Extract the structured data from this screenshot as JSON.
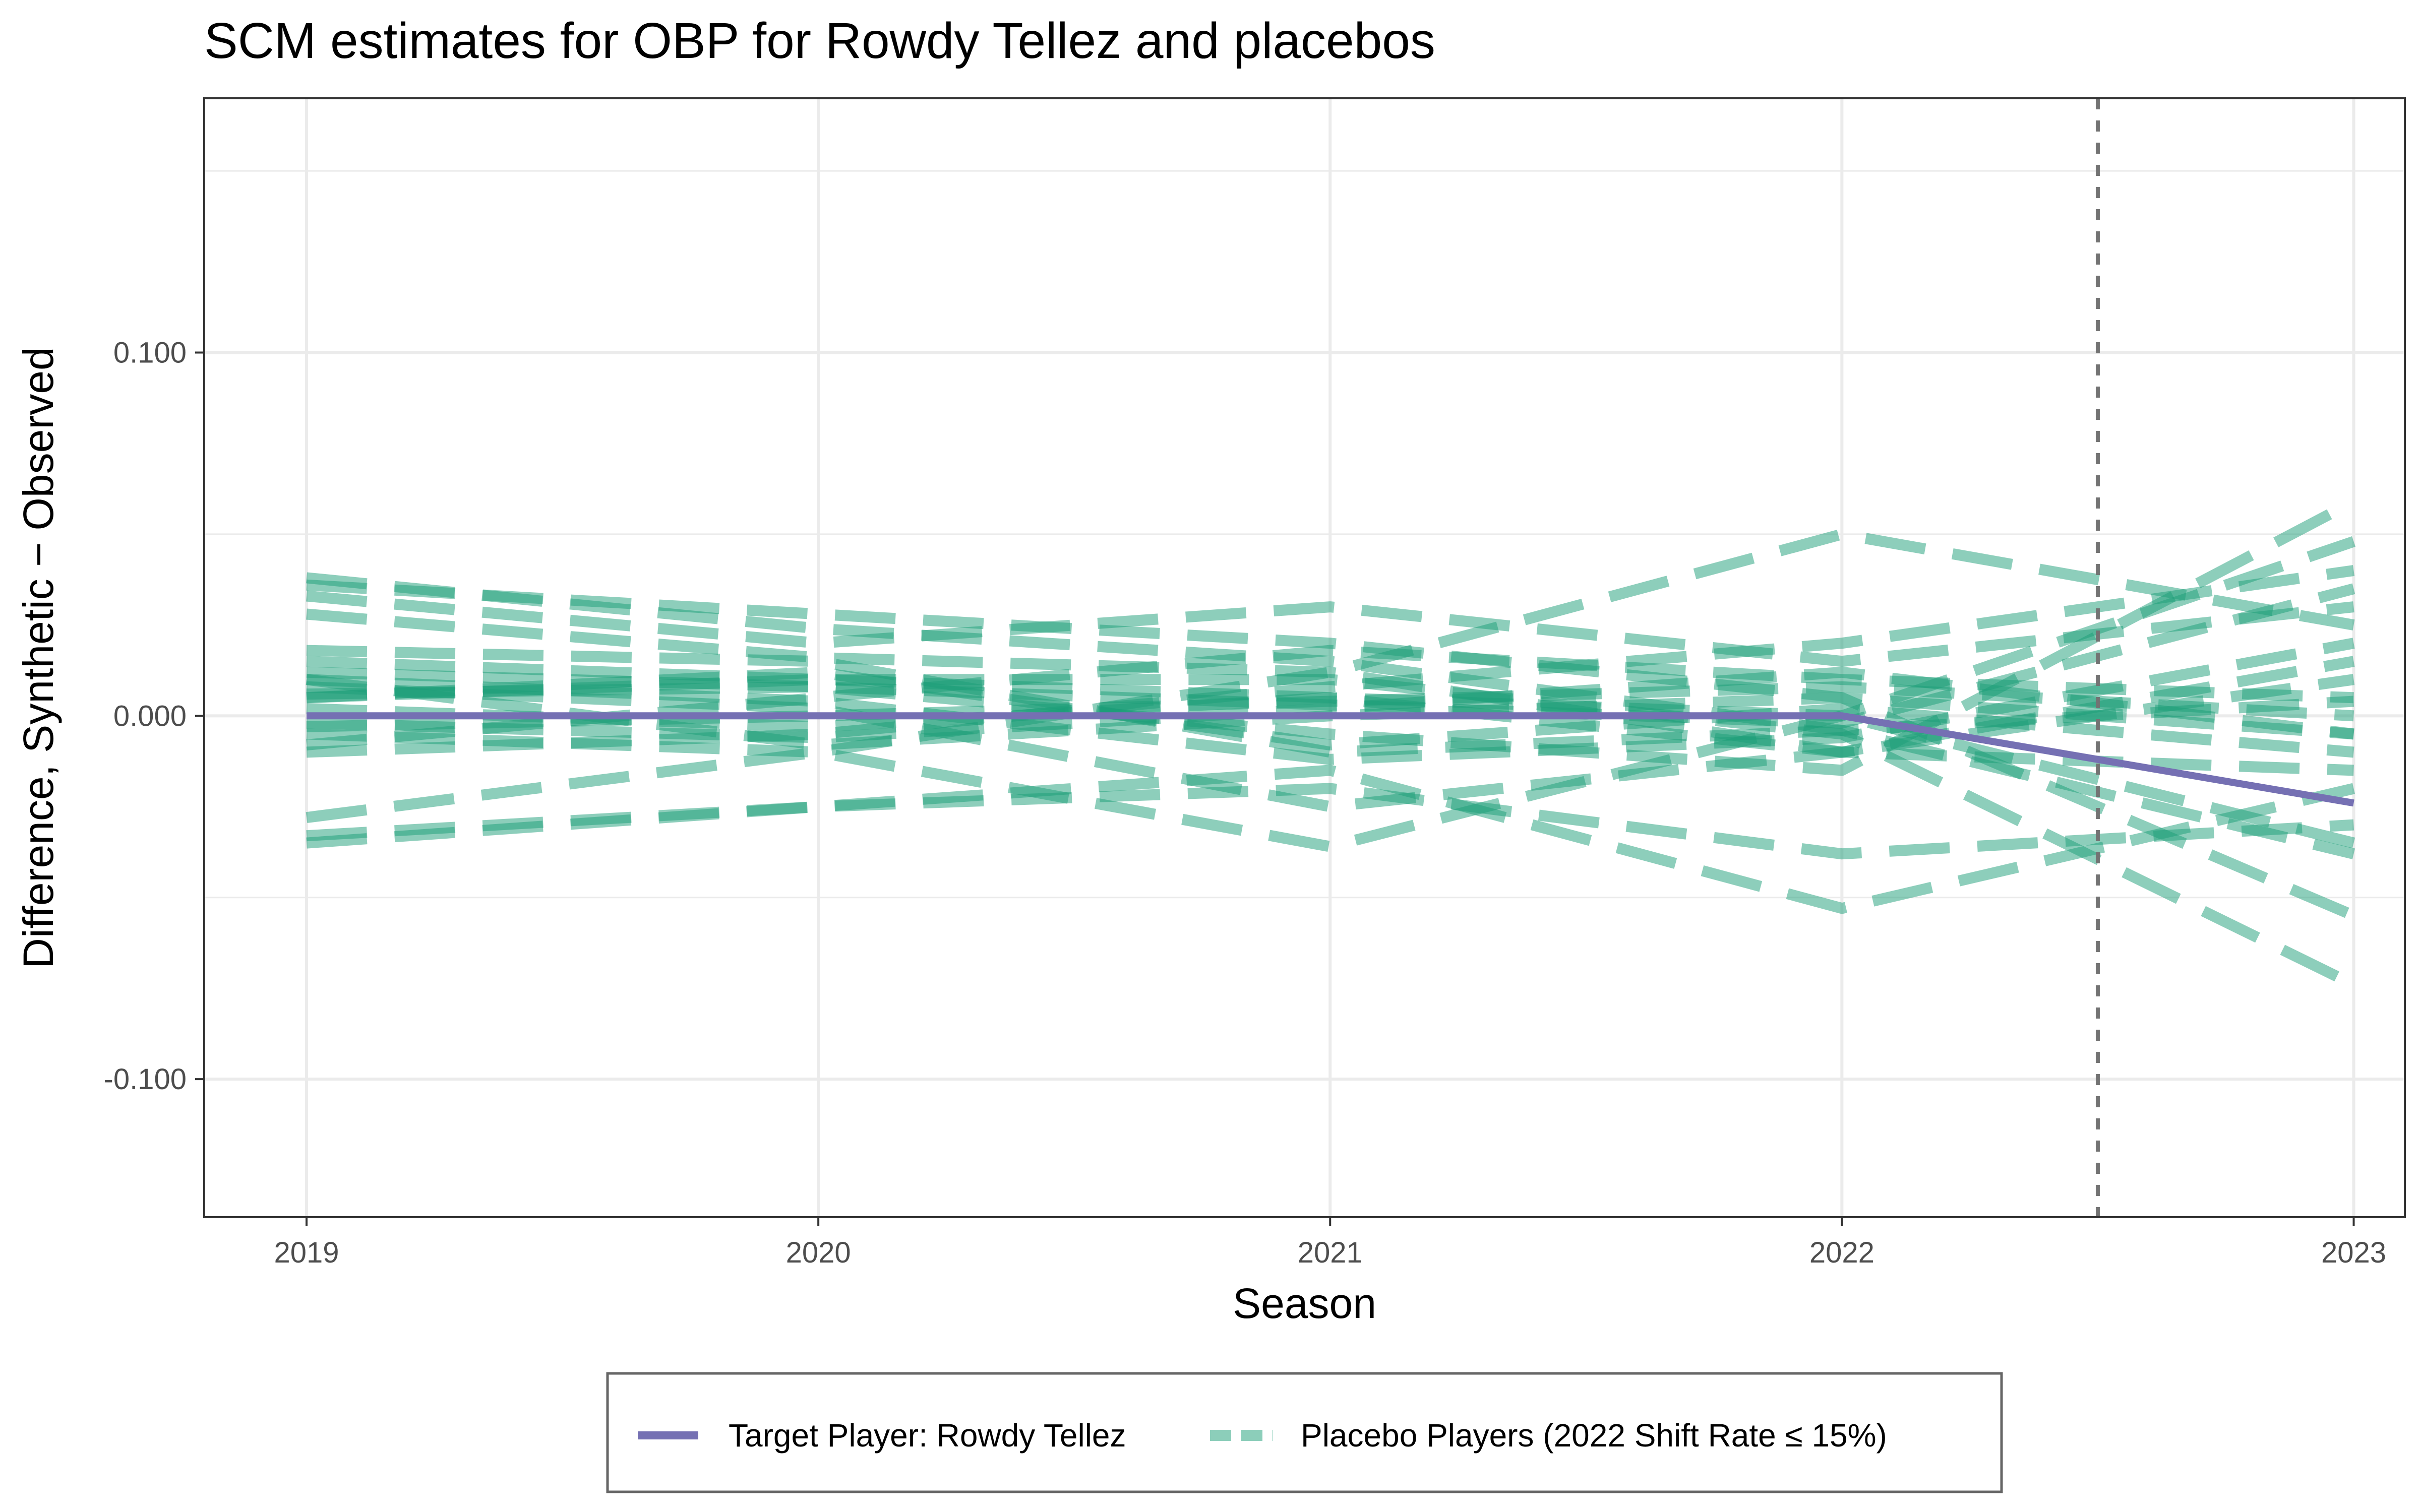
{
  "chart_data": {
    "type": "line",
    "title": "SCM estimates for OBP for Rowdy Tellez and placebos",
    "xlabel": "Season",
    "ylabel": "Difference, Synthetic − Observed",
    "xlim": [
      2018.8,
      2023.1
    ],
    "ylim": [
      -0.138,
      0.17
    ],
    "x_ticks": [
      {
        "value": 2019,
        "label": "2019"
      },
      {
        "value": 2020,
        "label": "2020"
      },
      {
        "value": 2021,
        "label": "2021"
      },
      {
        "value": 2022,
        "label": "2022"
      },
      {
        "value": 2023,
        "label": "2023"
      }
    ],
    "y_ticks": [
      {
        "value": -0.1,
        "label": "-0.100"
      },
      {
        "value": 0.0,
        "label": "0.000"
      },
      {
        "value": 0.1,
        "label": "0.100"
      }
    ],
    "y_minor_gridlines": [
      -0.05,
      0.05,
      0.15
    ],
    "treatment_line_x": 2022.5,
    "grid": true,
    "legend_position": "bottom",
    "target": {
      "name": "Target Player: Rowdy Tellez",
      "color": "#7570b3",
      "x": [
        2019,
        2020,
        2021,
        2022,
        2023
      ],
      "values": [
        0.0,
        0.0,
        0.0,
        0.0,
        -0.024
      ]
    },
    "placebo": {
      "name": "Placebo Players (2022 Shift Rate ≤ 15%)",
      "color": "#1b9e77",
      "x": [
        2019,
        2020,
        2021,
        2022,
        2023
      ],
      "series": [
        [
          0.036,
          0.028,
          0.02,
          0.005,
          -0.005
        ],
        [
          0.038,
          0.024,
          0.015,
          -0.004,
          0.004
        ],
        [
          0.033,
          0.02,
          0.03,
          0.015,
          0.03
        ],
        [
          0.028,
          0.016,
          0.012,
          -0.01,
          -0.015
        ],
        [
          -0.028,
          -0.01,
          0.012,
          0.05,
          0.025
        ],
        [
          -0.033,
          -0.025,
          -0.02,
          -0.038,
          -0.03
        ],
        [
          -0.035,
          -0.025,
          -0.015,
          -0.053,
          -0.02
        ],
        [
          0.015,
          0.01,
          0.005,
          0.0,
          0.048
        ],
        [
          0.012,
          0.008,
          -0.005,
          -0.015,
          0.059
        ],
        [
          -0.01,
          -0.005,
          0.008,
          0.02,
          0.04
        ],
        [
          0.008,
          0.002,
          -0.025,
          -0.01,
          0.01
        ],
        [
          -0.005,
          -0.01,
          -0.036,
          0.0,
          -0.035
        ],
        [
          0.005,
          0.01,
          0.01,
          -0.005,
          -0.074
        ],
        [
          0.01,
          -0.008,
          0.0,
          0.005,
          -0.055
        ],
        [
          0.018,
          0.015,
          -0.01,
          -0.004,
          -0.038
        ],
        [
          -0.008,
          0.005,
          0.018,
          0.01,
          0.005
        ],
        [
          0.002,
          -0.003,
          0.005,
          -0.01,
          0.015
        ],
        [
          0.005,
          0.012,
          -0.008,
          0.002,
          -0.01
        ],
        [
          -0.003,
          0.0,
          0.004,
          0.008,
          0.0
        ],
        [
          0.01,
          0.004,
          -0.012,
          -0.006,
          0.02
        ],
        [
          -0.002,
          -0.006,
          0.002,
          0.012,
          -0.005
        ],
        [
          0.006,
          0.008,
          0.003,
          -0.002,
          0.035
        ]
      ]
    }
  }
}
